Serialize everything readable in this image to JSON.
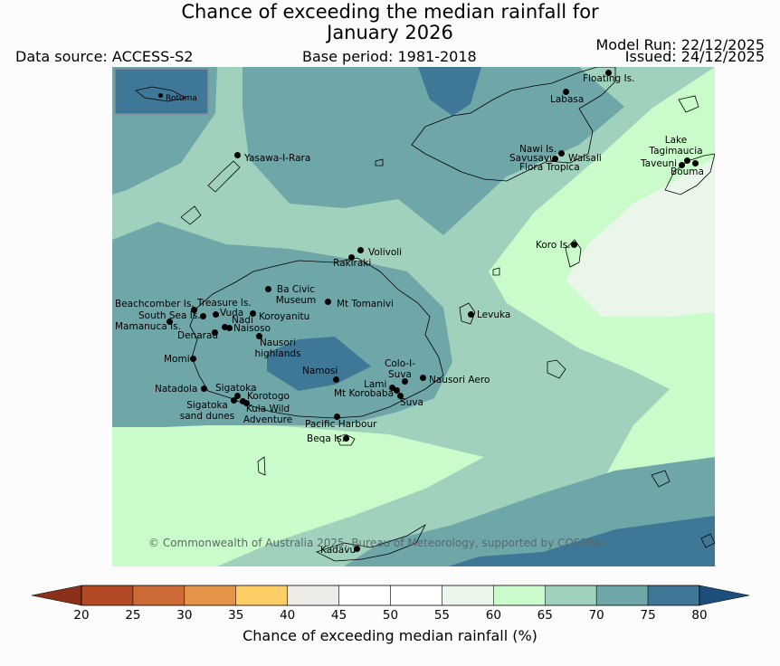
{
  "header": {
    "title_line1": "Chance of exceeding the median rainfall for",
    "title_line2": "January 2026",
    "data_source": "Data source: ACCESS-S2",
    "base_period": "Base period: 1981-2018",
    "model_run": "Model Run: 22/12/2025",
    "issued": "Issued: 24/12/2025"
  },
  "map": {
    "inset_label": "Rotuma",
    "copyright": "© Commonwealth of Australia 2025, Bureau of Meteorology, supported by COSPPac",
    "places": [
      {
        "id": "floating-is",
        "name": "Floating Is."
      },
      {
        "id": "labasa",
        "name": "Labasa"
      },
      {
        "id": "yasawa",
        "name": "Yasawa-I-Rara"
      },
      {
        "id": "nawi",
        "name": "Nawi Is."
      },
      {
        "id": "savusavu",
        "name": "Savusavu"
      },
      {
        "id": "waisali",
        "name": "Waisali"
      },
      {
        "id": "flora",
        "name": "Flora Tropica"
      },
      {
        "id": "lake-tagimaucia",
        "name": "Lake Tagimaucia"
      },
      {
        "id": "taveuni",
        "name": "Taveuni"
      },
      {
        "id": "bouma",
        "name": "Bouma"
      },
      {
        "id": "koro",
        "name": "Koro Is."
      },
      {
        "id": "volivoli",
        "name": "Volivoli"
      },
      {
        "id": "rakiraki",
        "name": "Rakiraki"
      },
      {
        "id": "ba-civic",
        "name": "Ba Civic Museum"
      },
      {
        "id": "mt-tomanivi",
        "name": "Mt Tomanivi"
      },
      {
        "id": "beachcomber",
        "name": "Beachcomber Is."
      },
      {
        "id": "treasure",
        "name": "Treasure Is."
      },
      {
        "id": "south-sea",
        "name": "South Sea Is."
      },
      {
        "id": "vuda",
        "name": "Vuda"
      },
      {
        "id": "koroyanitu",
        "name": "Koroyanitu"
      },
      {
        "id": "nadi",
        "name": "Nadi"
      },
      {
        "id": "mamanuca",
        "name": "Mamanuca Is."
      },
      {
        "id": "naisoso",
        "name": "Naisoso"
      },
      {
        "id": "denarau",
        "name": "Denarau"
      },
      {
        "id": "nausori-highlands",
        "name": "Nausori highlands"
      },
      {
        "id": "levuka",
        "name": "Levuka"
      },
      {
        "id": "momi",
        "name": "Momi"
      },
      {
        "id": "namosi",
        "name": "Namosi"
      },
      {
        "id": "colo-i-suva",
        "name": "Colo-I-Suva"
      },
      {
        "id": "nausori-aero",
        "name": "Nausori Aero"
      },
      {
        "id": "lami",
        "name": "Lami"
      },
      {
        "id": "natadola",
        "name": "Natadola"
      },
      {
        "id": "sigatoka",
        "name": "Sigatoka"
      },
      {
        "id": "mt-korobaba",
        "name": "Mt Korobaba"
      },
      {
        "id": "korotogo",
        "name": "Korotogo"
      },
      {
        "id": "suva",
        "name": "Suva"
      },
      {
        "id": "sigatoka-dunes",
        "name": "Sigatoka sand dunes"
      },
      {
        "id": "kula",
        "name": "Kula Wild Adventure"
      },
      {
        "id": "pacific-harbour",
        "name": "Pacific Harbour"
      },
      {
        "id": "beqa",
        "name": "Beqa Is."
      },
      {
        "id": "kadavu",
        "name": "Kadavu"
      }
    ]
  },
  "colorbar": {
    "ticks": [
      "20",
      "25",
      "30",
      "35",
      "40",
      "45",
      "50",
      "55",
      "60",
      "65",
      "70",
      "75",
      "80"
    ],
    "colors": [
      "#b54825",
      "#cd6a35",
      "#e39447",
      "#fdcd66",
      "#ecebe8",
      "#ffffff",
      "#ffffff",
      "#eaf6ea",
      "#cafccb",
      "#9fd1bc",
      "#6fa6a8",
      "#3f7797"
    ],
    "under_color": "#8a3018",
    "over_color": "#1e4e7c",
    "label": "Chance of exceeding median rainfall (%)"
  }
}
